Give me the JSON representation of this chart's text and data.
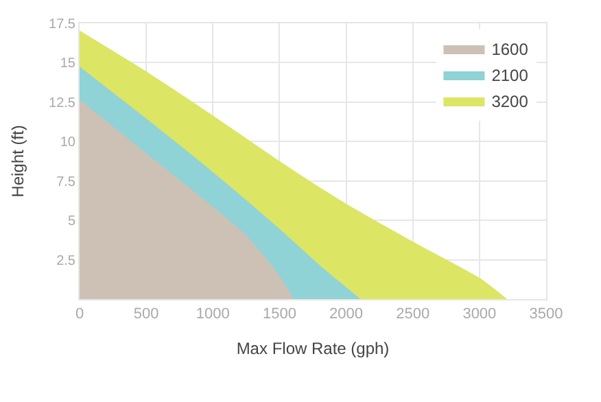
{
  "chart_data": {
    "type": "area",
    "xlabel": "Max Flow Rate (gph)",
    "ylabel": "Height (ft)",
    "xlim": [
      0,
      3500
    ],
    "xticks": [
      0,
      500,
      1000,
      1500,
      2000,
      2500,
      3000,
      3500
    ],
    "ylim": [
      0,
      17.5
    ],
    "yticks": [
      2.5,
      5,
      7.5,
      10,
      12.5,
      15,
      17.5
    ],
    "grid": true,
    "legend": "top right",
    "series": [
      {
        "name": "3200",
        "color": "#dde565",
        "x": [
          0,
          500,
          1000,
          1500,
          2000,
          2500,
          3000,
          3200
        ],
        "values": [
          17,
          14.4,
          11.6,
          8.7,
          6.0,
          3.6,
          1.3,
          0
        ]
      },
      {
        "name": "2100",
        "color": "#8fd3d6",
        "x": [
          0,
          500,
          1000,
          1500,
          1800,
          2100
        ],
        "values": [
          14.7,
          11.4,
          8.0,
          4.4,
          2.1,
          0
        ]
      },
      {
        "name": "1600",
        "color": "#cdc1b5",
        "x": [
          0,
          500,
          1000,
          1250,
          1500,
          1600
        ],
        "values": [
          12.6,
          9.2,
          5.8,
          4.0,
          1.4,
          0
        ]
      }
    ]
  }
}
